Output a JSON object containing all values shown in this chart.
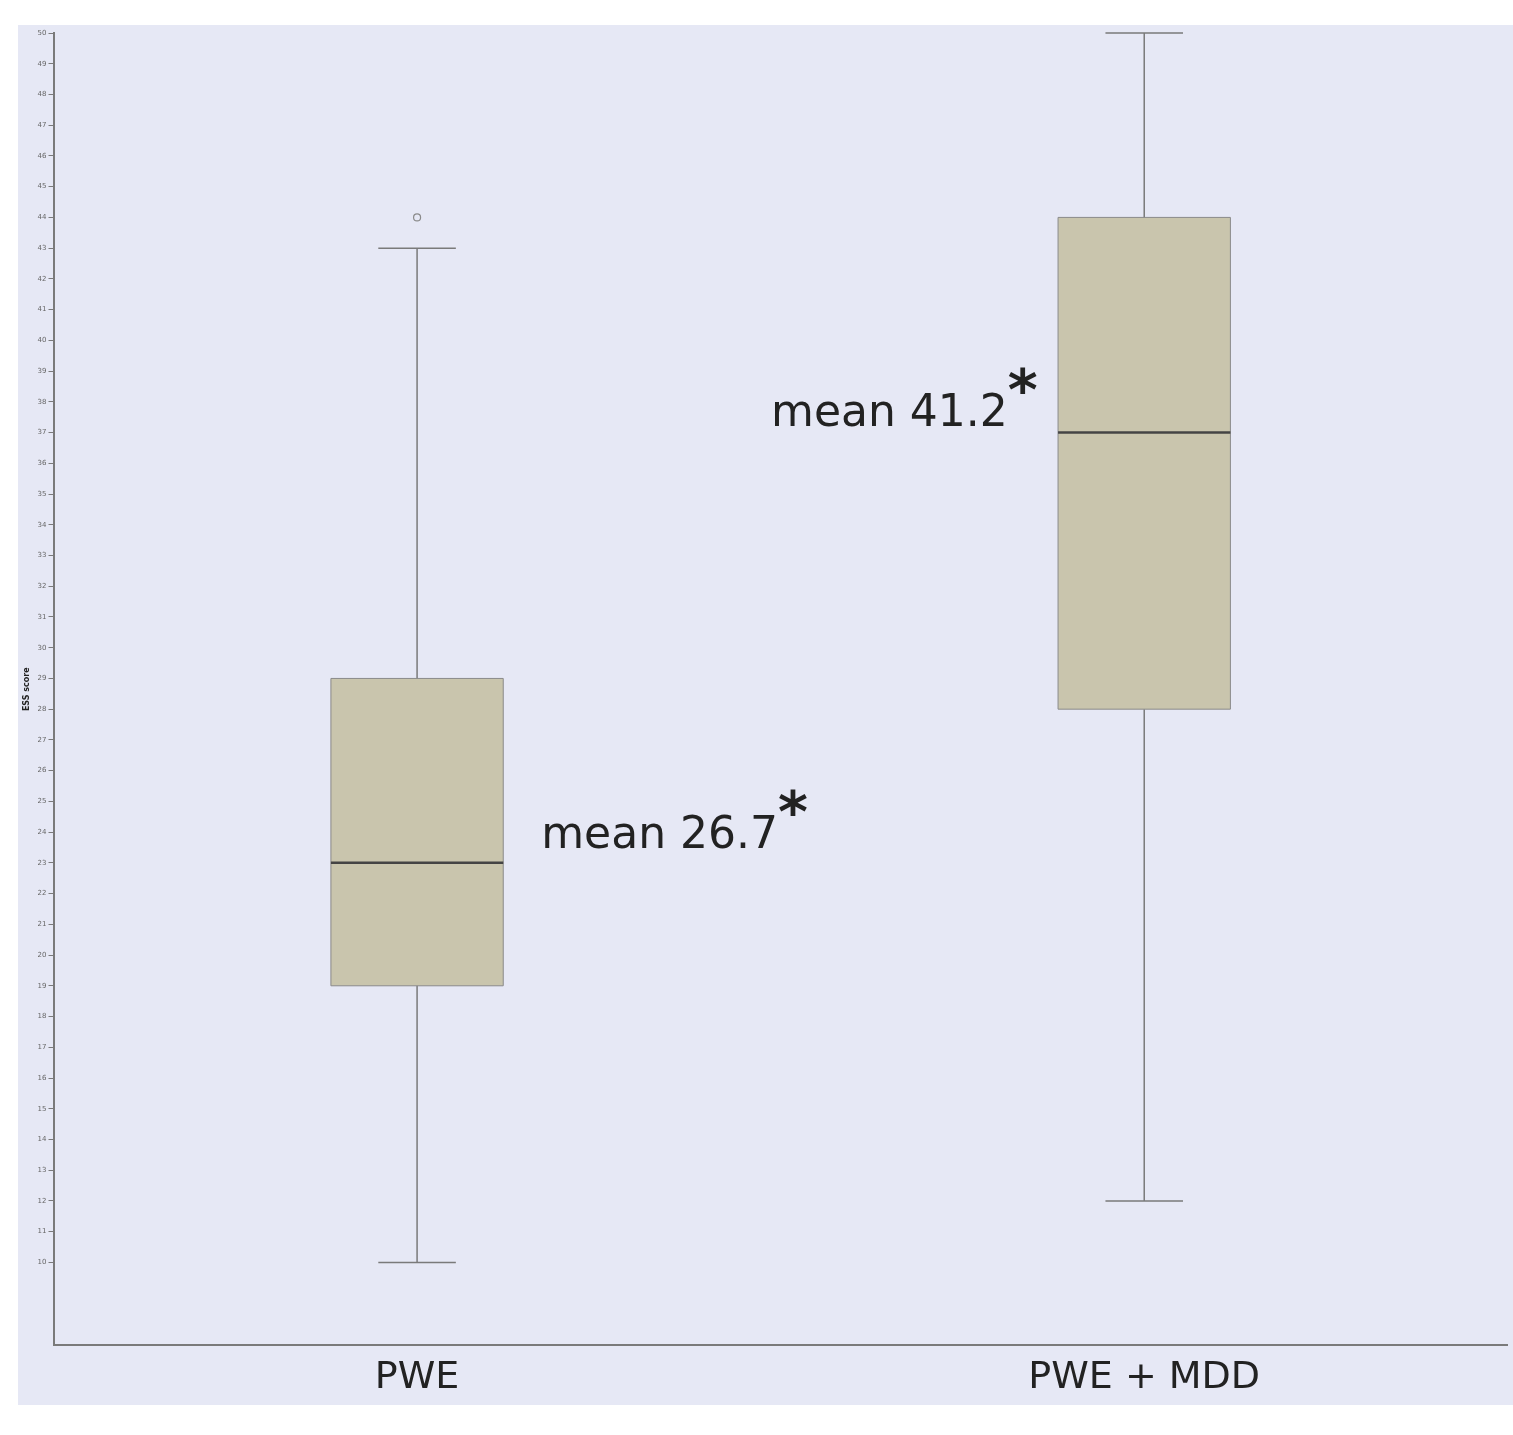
{
  "chart_data": {
    "type": "box",
    "ylabel": "ESS score",
    "categories": [
      "PWE",
      "PWE + MDD"
    ],
    "boxes": [
      {
        "low": 10,
        "q1": 19,
        "median": 23,
        "q3": 29,
        "high": 43,
        "outliers": [
          44
        ]
      },
      {
        "low": 12,
        "q1": 28,
        "median": 37,
        "q3": 44,
        "high": 50
      }
    ],
    "color": "#c9c5ad",
    "ylim": [
      7.3,
      50
    ],
    "yticks": [
      10,
      11,
      12,
      13,
      14,
      15,
      16,
      17,
      18,
      19,
      20,
      21,
      22,
      23,
      24,
      25,
      26,
      27,
      28,
      29,
      30,
      31,
      32,
      33,
      34,
      35,
      36,
      37,
      38,
      39,
      40,
      41,
      42,
      43,
      44,
      45,
      46,
      47,
      48,
      49,
      50
    ],
    "annotations": [
      "mean 26.7$^{*}$",
      "mean 41.2$^{*}$"
    ],
    "grid": false,
    "legend": false,
    "marker": "circle"
  }
}
